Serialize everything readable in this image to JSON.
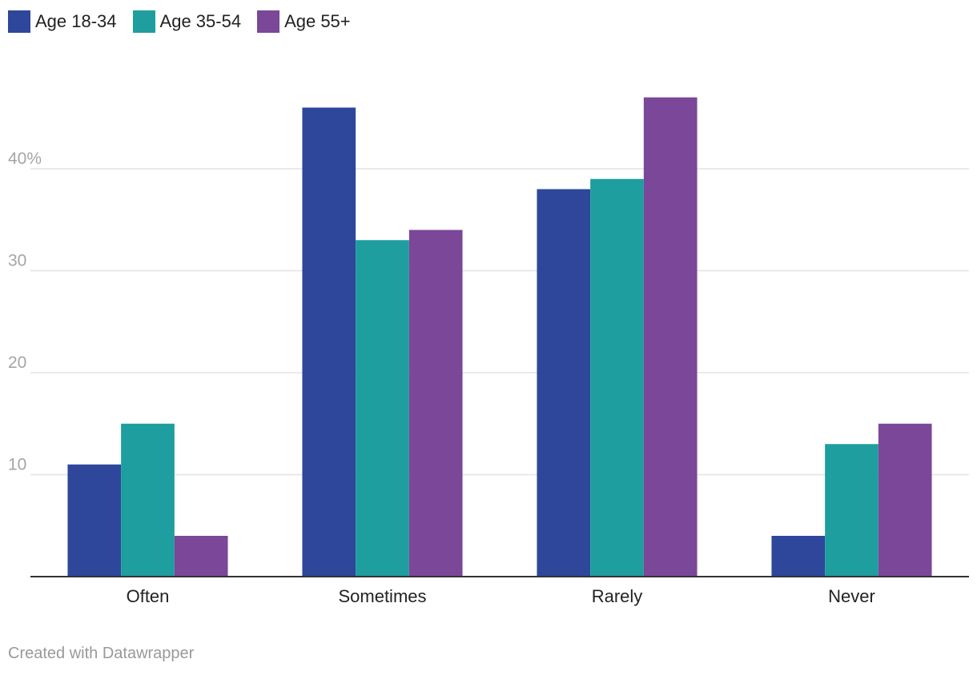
{
  "chart_data": {
    "type": "bar",
    "title": "",
    "xlabel": "",
    "ylabel": "",
    "categories": [
      "Often",
      "Sometimes",
      "Rarely",
      "Never"
    ],
    "series": [
      {
        "name": "Age 18-34",
        "color": "#2e479b",
        "values": [
          11,
          46,
          38,
          4
        ]
      },
      {
        "name": "Age 35-54",
        "color": "#1e9e9e",
        "values": [
          15,
          33,
          39,
          13
        ]
      },
      {
        "name": "Age 55+",
        "color": "#7b4799",
        "values": [
          4,
          34,
          47,
          15
        ]
      }
    ],
    "yticks": [
      {
        "value": 10,
        "label": "10"
      },
      {
        "value": 20,
        "label": "20"
      },
      {
        "value": 30,
        "label": "30"
      },
      {
        "value": 40,
        "label": "40%"
      }
    ],
    "ylim": [
      0,
      50
    ],
    "grid": true,
    "legend_position": "top-left"
  },
  "footer": {
    "credit": "Created with Datawrapper"
  }
}
